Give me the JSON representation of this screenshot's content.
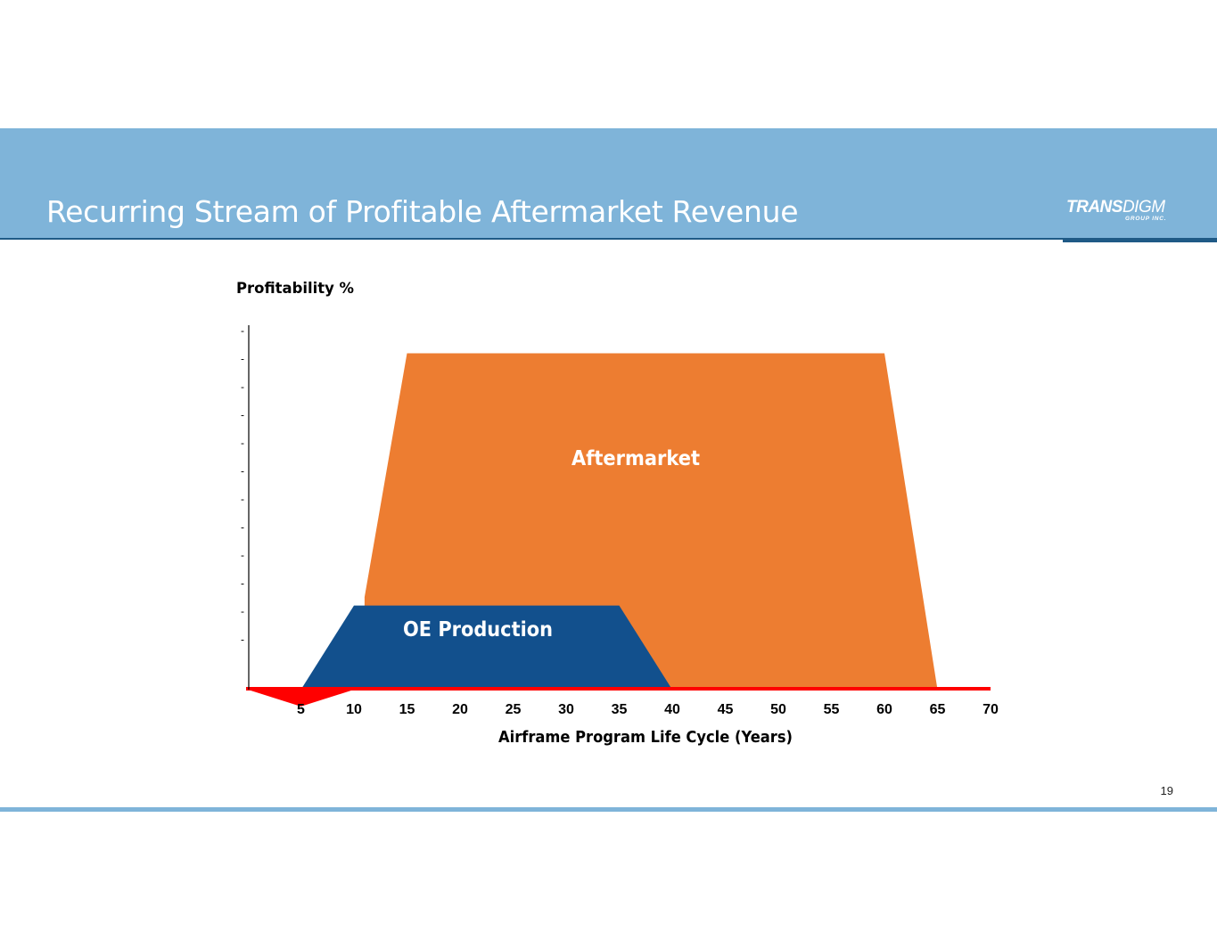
{
  "slide": {
    "title": "Recurring Stream of Profitable Aftermarket Revenue",
    "page_number": "19",
    "logo": {
      "main_bold": "TRANS",
      "main_thin": "DIGM",
      "sub": "GROUP INC."
    }
  },
  "colors": {
    "header": "#7fb4d9",
    "header_rule": "#1f5a86",
    "aftermarket": "#ed7d31",
    "oe": "#12508d",
    "negative": "#ff0000"
  },
  "chart_data": {
    "type": "area",
    "ylabel": "Profitability %",
    "xlabel": "Airframe Program Life Cycle (Years)",
    "xticks": [
      5,
      10,
      15,
      20,
      25,
      30,
      35,
      40,
      45,
      50,
      55,
      60,
      65,
      70
    ],
    "xlim": [
      0,
      70
    ],
    "ylim": [
      0,
      13
    ],
    "ytick_count": 12,
    "ytick_label": "-",
    "series": [
      {
        "name": "Aftermarket",
        "x": [
          11,
          15,
          60,
          65
        ],
        "y": [
          3.3,
          12.0,
          12.0,
          0
        ]
      },
      {
        "name": "OE Production",
        "x": [
          5,
          10,
          35,
          40
        ],
        "y": [
          0,
          3.0,
          3.0,
          0
        ]
      },
      {
        "x": [
          0,
          5,
          10
        ],
        "y": [
          0,
          -0.6,
          0
        ]
      }
    ]
  }
}
